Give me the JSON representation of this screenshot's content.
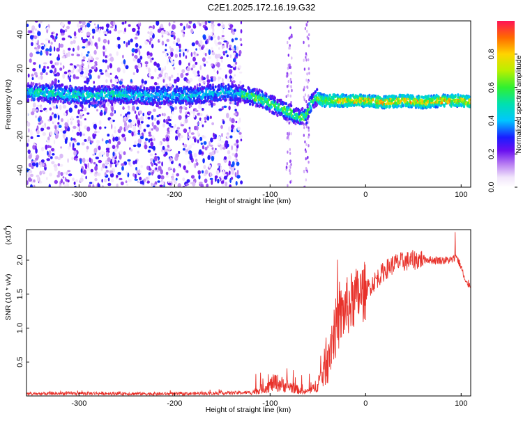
{
  "title": "C2E1.2025.172.16.19.G32",
  "chart_data": [
    {
      "type": "heatmap",
      "xlabel": "Height of straight line (km)",
      "ylabel": "Frequency (Hz)",
      "xlim": [
        -355,
        110
      ],
      "ylim": [
        -50,
        48
      ],
      "xticks": [
        -300,
        -200,
        -100,
        0,
        100
      ],
      "yticks": [
        -40,
        -20,
        0,
        20,
        40
      ],
      "colorbar": {
        "label": "Normalized spectral amplitude",
        "ticks": [
          0.0,
          0.2,
          0.4,
          0.6,
          0.8
        ],
        "range": [
          0,
          1
        ]
      },
      "ridge": {
        "x": [
          -345,
          -320,
          -290,
          -260,
          -230,
          -200,
          -180,
          -150,
          -130,
          -110,
          -95,
          -80,
          -70,
          -62,
          -58,
          -52,
          -45,
          -35,
          -20,
          0,
          20,
          40,
          60,
          80,
          100,
          110
        ],
        "y": [
          6,
          5,
          4,
          5,
          4,
          4,
          4,
          6,
          5,
          2,
          -2,
          -6,
          -9,
          -8,
          -2,
          3,
          1,
          1,
          1,
          1,
          0,
          1,
          0,
          1,
          1,
          0
        ]
      }
    },
    {
      "type": "line",
      "xlabel": "Height of straight line (km)",
      "ylabel": "SNR (10 * v/v)",
      "scale_label": "(x10",
      "scale_exp": "4",
      "xlim": [
        -355,
        110
      ],
      "ylim": [
        0,
        2.45
      ],
      "xticks": [
        -300,
        -200,
        -100,
        0,
        100
      ],
      "yticks": [
        0.5,
        1.0,
        1.5,
        2.0
      ],
      "ytick_labels": [
        "0.5",
        "1.0",
        "1.5",
        "2.0"
      ],
      "series_envelope": {
        "x": [
          -355,
          -300,
          -200,
          -120,
          -105,
          -95,
          -85,
          -75,
          -65,
          -55,
          -45,
          -40,
          -35,
          -30,
          -25,
          -20,
          -10,
          0,
          10,
          20,
          30,
          40,
          50,
          60,
          70,
          80,
          90,
          95,
          100,
          105,
          110
        ],
        "y": [
          0.03,
          0.04,
          0.03,
          0.05,
          0.12,
          0.2,
          0.16,
          0.12,
          0.05,
          0.1,
          0.3,
          0.6,
          0.85,
          1.05,
          1.2,
          1.3,
          1.45,
          1.55,
          1.7,
          1.85,
          1.95,
          1.98,
          2.0,
          2.02,
          2.0,
          2.0,
          2.0,
          2.05,
          1.9,
          1.65,
          1.65
        ]
      },
      "color": "#e8312a"
    }
  ]
}
